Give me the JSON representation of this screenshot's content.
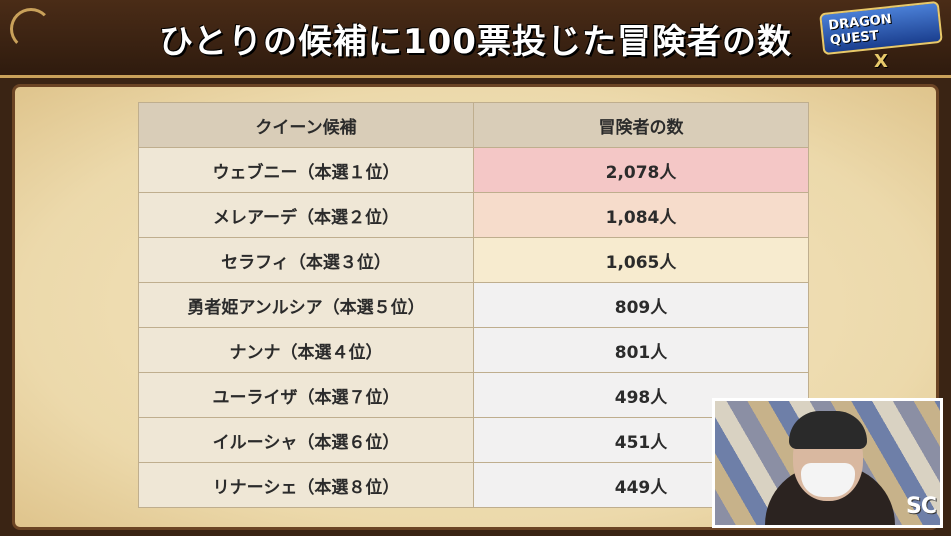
{
  "header": {
    "title": "ひとりの候補に100票投じた冒険者の数",
    "logo": {
      "main": "DRAGON QUEST",
      "sub": "X"
    }
  },
  "table": {
    "headers": {
      "name": "クイーン候補",
      "count": "冒険者の数"
    },
    "rows": [
      {
        "name": "ウェブニー（本選１位）",
        "count": "2,078人"
      },
      {
        "name": "メレアーデ（本選２位）",
        "count": "1,084人"
      },
      {
        "name": "セラフィ（本選３位）",
        "count": "1,065人"
      },
      {
        "name": "勇者姫アンルシア（本選５位）",
        "count": "809人"
      },
      {
        "name": "ナンナ（本選４位）",
        "count": "801人"
      },
      {
        "name": "ユーライザ（本選７位）",
        "count": "498人"
      },
      {
        "name": "イルーシャ（本選６位）",
        "count": "451人"
      },
      {
        "name": "リナーシェ（本選８位）",
        "count": "449人"
      }
    ]
  },
  "webcam": {
    "watermark": "SC"
  },
  "colors": {
    "header_bg": "#3a2414",
    "parchment": "#f4e6c2",
    "header_cell": "#d9cdb8",
    "rank1_highlight": "#f4c7c6",
    "rank2_highlight": "#f6dccb",
    "rank3_highlight": "#f7ebcf"
  }
}
